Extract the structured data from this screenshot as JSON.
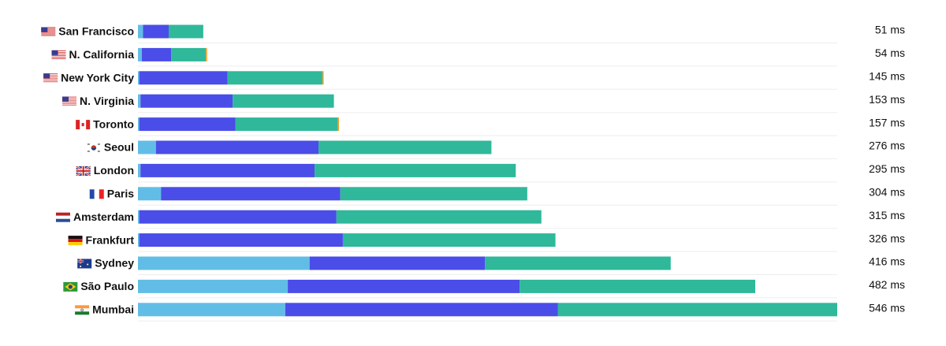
{
  "chart_data": {
    "type": "stacked-bar-horizontal",
    "categories": [
      "San Francisco",
      "N. California",
      "New York City",
      "N. Virginia",
      "Toronto",
      "Seoul",
      "London",
      "Paris",
      "Amsterdam",
      "Frankfurt",
      "Sydney",
      "São Paulo",
      "Mumbai"
    ],
    "series": [
      {
        "color": "#62bde6",
        "values": [
          4,
          3,
          1,
          2,
          1,
          14,
          2,
          18,
          1,
          1,
          134,
          117,
          115
        ]
      },
      {
        "color": "#4a4de8",
        "values": [
          20,
          23,
          69,
          72,
          75,
          127,
          136,
          140,
          154,
          159,
          137,
          181,
          213
        ]
      },
      {
        "color": "#2fb89a",
        "values": [
          27,
          27,
          74,
          79,
          80,
          135,
          157,
          146,
          160,
          166,
          145,
          184,
          218
        ]
      },
      {
        "color": "#f0a030",
        "values": [
          0,
          1,
          1,
          0,
          1,
          0,
          0,
          0,
          0,
          0,
          0,
          0,
          0
        ]
      }
    ],
    "totals": [
      51,
      54,
      145,
      153,
      157,
      276,
      295,
      304,
      315,
      326,
      416,
      482,
      546
    ],
    "value_labels": [
      "51 ms",
      "54 ms",
      "145 ms",
      "153 ms",
      "157 ms",
      "276 ms",
      "295 ms",
      "304 ms",
      "315 ms",
      "326 ms",
      "416 ms",
      "482 ms",
      "546 ms"
    ],
    "xlim": [
      0,
      546
    ],
    "grid": true
  }
}
